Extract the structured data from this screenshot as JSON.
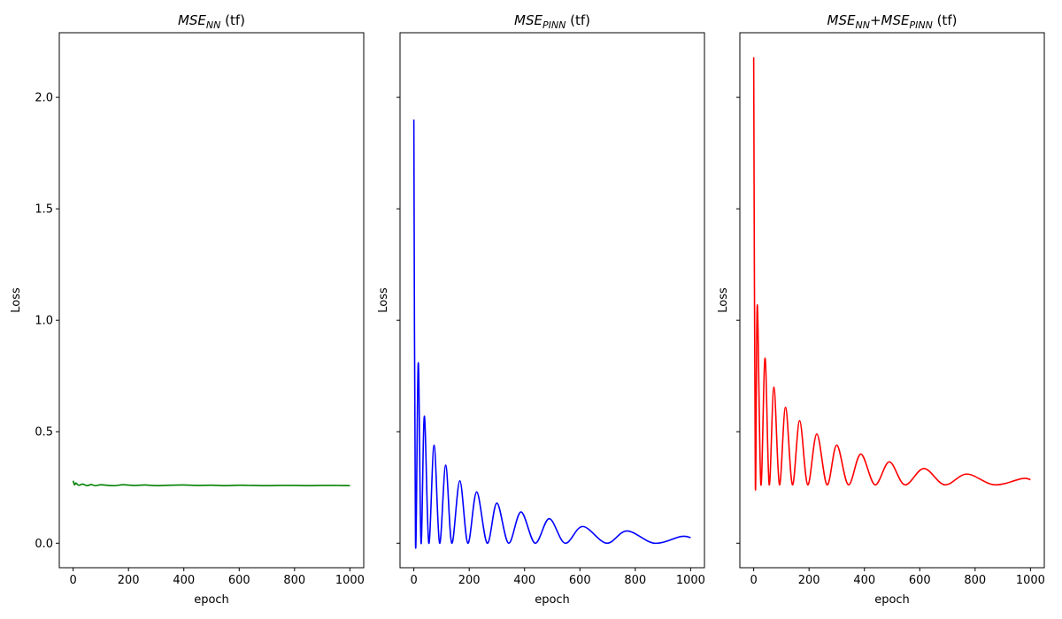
{
  "chart_data": [
    {
      "type": "line",
      "title": [
        {
          "text": "MSE",
          "math": true
        },
        {
          "text": "NN",
          "math": true,
          "sub": true
        },
        {
          "text": " (tf)"
        }
      ],
      "xlabel": "epoch",
      "ylabel": "Loss",
      "xlim": [
        -50,
        1050
      ],
      "ylim": [
        -0.11,
        2.29
      ],
      "xticks": [
        0,
        200,
        400,
        600,
        800,
        1000
      ],
      "yticks": [
        {
          "value": 0,
          "label": "0.0"
        },
        {
          "value": 0.5,
          "label": "0.5"
        },
        {
          "value": 1,
          "label": "1.0"
        },
        {
          "value": 1.5,
          "label": "1.5"
        },
        {
          "value": 2,
          "label": "2.0"
        }
      ],
      "x": [
        0,
        5,
        10,
        20,
        35,
        50,
        65,
        80,
        100,
        120,
        150,
        180,
        220,
        260,
        300,
        350,
        400,
        450,
        500,
        550,
        600,
        650,
        700,
        750,
        800,
        850,
        900,
        950,
        1000
      ],
      "series": [
        {
          "color": "#008000",
          "values": [
            0.28,
            0.262,
            0.27,
            0.26,
            0.265,
            0.258,
            0.263,
            0.258,
            0.262,
            0.26,
            0.258,
            0.262,
            0.259,
            0.261,
            0.258,
            0.26,
            0.261,
            0.259,
            0.26,
            0.258,
            0.26,
            0.259,
            0.258,
            0.259,
            0.259,
            0.258,
            0.259,
            0.259,
            0.258
          ]
        }
      ]
    },
    {
      "type": "line",
      "title": [
        {
          "text": "MSE",
          "math": true
        },
        {
          "text": "PINN",
          "math": true,
          "sub": true
        },
        {
          "text": " (tf)"
        }
      ],
      "xlabel": "epoch",
      "ylabel": "Loss",
      "xlim": [
        -50,
        1050
      ],
      "ylim": [
        -0.11,
        2.29
      ],
      "xticks": [
        0,
        200,
        400,
        600,
        800,
        1000
      ],
      "yticks": [
        0,
        0.5,
        1,
        1.5,
        2
      ],
      "x": [
        0,
        6,
        16,
        26,
        38,
        54,
        73,
        93,
        115,
        137,
        166,
        195,
        227,
        265,
        300,
        342,
        387,
        438,
        489,
        546,
        610,
        696,
        770,
        869,
        965,
        1000
      ],
      "series": [
        {
          "color": "#0000ff",
          "values": [
            1.9,
            0,
            0.81,
            0,
            0.57,
            0,
            0.44,
            0,
            0.35,
            0,
            0.28,
            0,
            0.23,
            0,
            0.18,
            0,
            0.14,
            0,
            0.11,
            0,
            0.075,
            0,
            0.055,
            0,
            0.03,
            0.025
          ]
        }
      ]
    },
    {
      "type": "line",
      "title": [
        {
          "text": "MSE",
          "math": true
        },
        {
          "text": "NN",
          "math": true,
          "sub": true
        },
        {
          "text": "+MSE",
          "math": true
        },
        {
          "text": "PINN",
          "math": true,
          "sub": true
        },
        {
          "text": " (tf)"
        }
      ],
      "xlabel": "epoch",
      "ylabel": "Loss",
      "xlim": [
        -50,
        1050
      ],
      "ylim": [
        -0.11,
        2.29
      ],
      "xticks": [
        0,
        200,
        400,
        600,
        800,
        1000
      ],
      "yticks": [
        0,
        0.5,
        1,
        1.5,
        2
      ],
      "x": [
        0,
        6,
        13,
        26,
        41,
        56,
        73,
        93,
        115,
        140,
        166,
        195,
        228,
        265,
        300,
        342,
        387,
        438,
        490,
        546,
        615,
        690,
        770,
        869,
        970,
        1000
      ],
      "series": [
        {
          "color": "#ff0000",
          "values": [
            2.18,
            0.262,
            1.07,
            0.262,
            0.83,
            0.262,
            0.7,
            0.262,
            0.61,
            0.262,
            0.55,
            0.262,
            0.49,
            0.262,
            0.44,
            0.262,
            0.4,
            0.262,
            0.365,
            0.262,
            0.335,
            0.262,
            0.31,
            0.262,
            0.29,
            0.285
          ]
        }
      ]
    }
  ]
}
